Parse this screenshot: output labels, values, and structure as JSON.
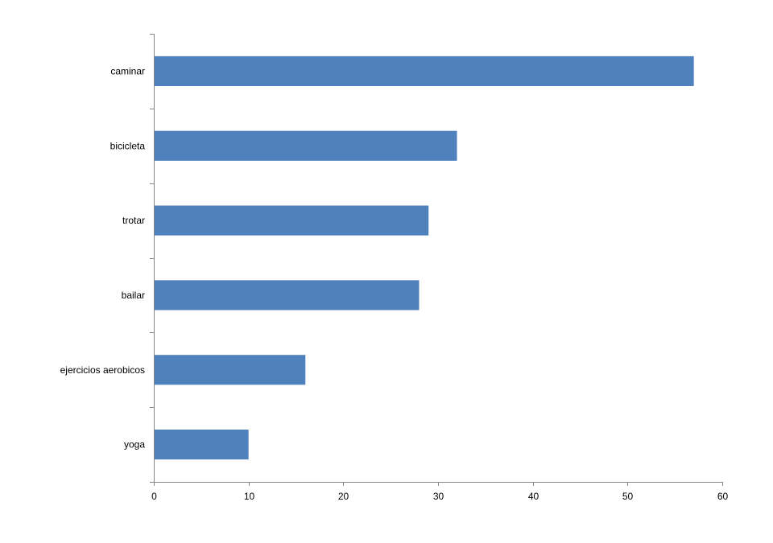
{
  "chart_data": {
    "type": "bar",
    "orientation": "horizontal",
    "title": "",
    "xlabel": "",
    "ylabel": "",
    "categories": [
      "caminar",
      "bicicleta",
      "trotar",
      "bailar",
      "ejercicios aerobicos",
      "yoga"
    ],
    "values": [
      57,
      32,
      29,
      28,
      16,
      10
    ],
    "xlim": [
      0,
      60
    ],
    "x_ticks": [
      0,
      10,
      20,
      30,
      40,
      50,
      60
    ],
    "grid": false,
    "legend": "none",
    "bar_color": "#4F81BD"
  }
}
